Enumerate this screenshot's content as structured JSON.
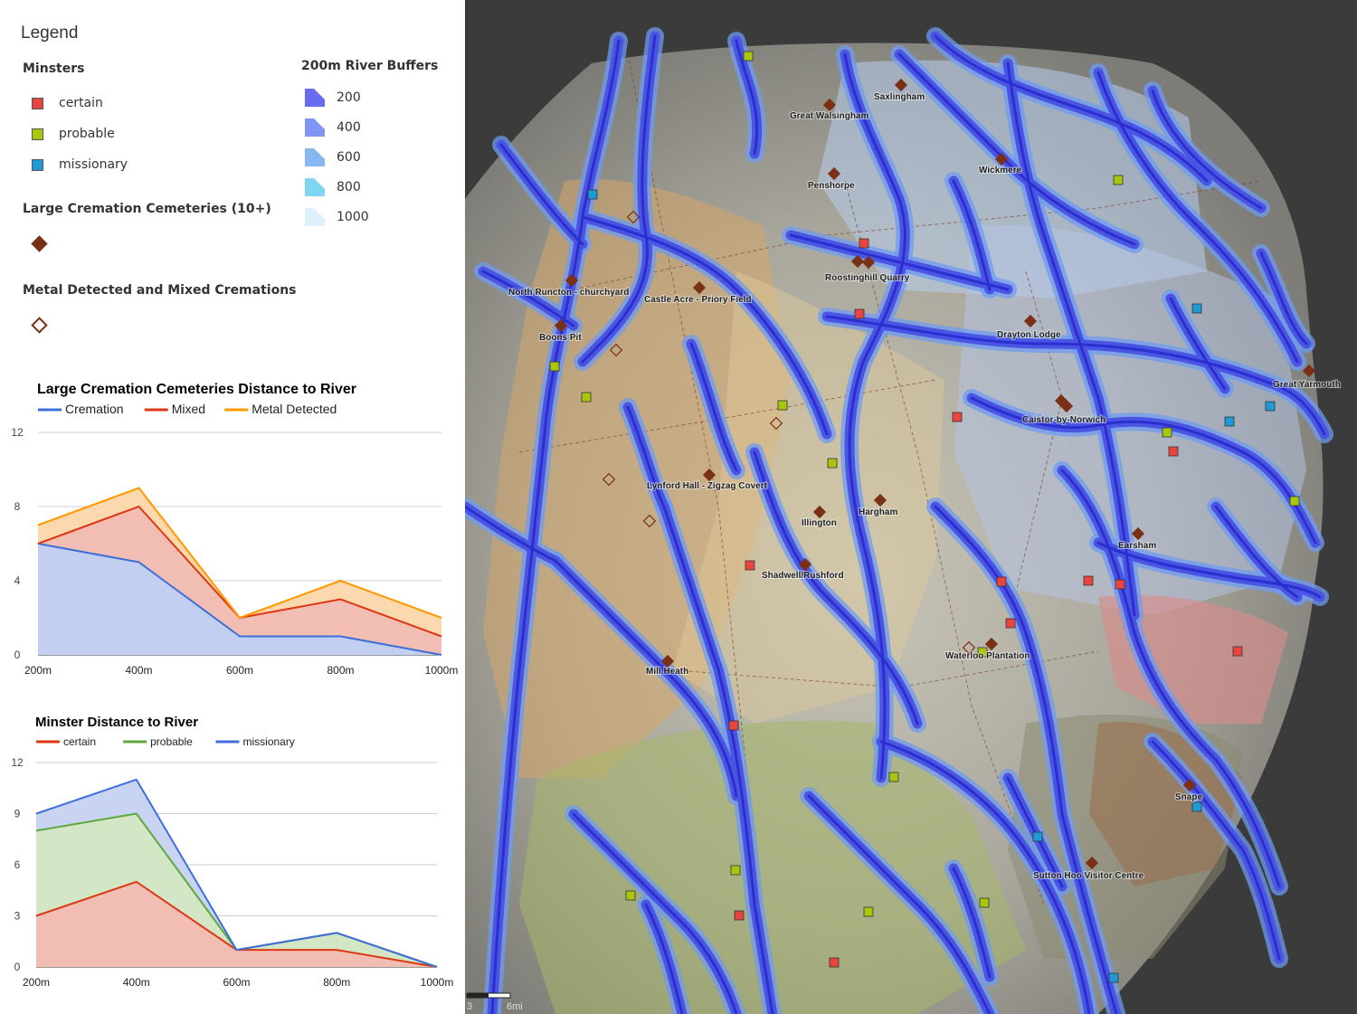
{
  "legend": {
    "title": "Legend",
    "minsters": {
      "heading": "Minsters",
      "items": [
        {
          "label": "certain",
          "color": "#e9453f"
        },
        {
          "label": "probable",
          "color": "#a8c70c"
        },
        {
          "label": "missionary",
          "color": "#1e9ad6"
        }
      ]
    },
    "buffers": {
      "heading": "200m River Buffers",
      "items": [
        {
          "label": "200",
          "color": "#6a6cf0"
        },
        {
          "label": "400",
          "color": "#7f97f2"
        },
        {
          "label": "600",
          "color": "#86b7f2"
        },
        {
          "label": "800",
          "color": "#7ed6f2"
        },
        {
          "label": "1000",
          "color": "#dcf1fa"
        }
      ]
    },
    "large_cremation": {
      "heading": "Large Cremation Cemeteries (10+)",
      "color": "#7a3014"
    },
    "metal_detected": {
      "heading": "Metal Detected and Mixed Cremations",
      "color": "#7a3014"
    }
  },
  "chart_data": [
    {
      "type": "area",
      "stacked": true,
      "title": "Large Cremation Cemeteries Distance to River",
      "categories": [
        "200m",
        "400m",
        "600m",
        "800m",
        "1000m"
      ],
      "ylim": [
        0,
        12
      ],
      "yticks": [
        0,
        4,
        8,
        12
      ],
      "legend": "top",
      "grid": true,
      "series": [
        {
          "name": "Cremation",
          "values": [
            6,
            5,
            1,
            1,
            0
          ],
          "color": "#3f6fd8",
          "fill": "#c3cff0"
        },
        {
          "name": "Mixed",
          "values": [
            0,
            3,
            1,
            2,
            1
          ],
          "color": "#dc3912",
          "fill": "#f2bdb2"
        },
        {
          "name": "Metal Detected",
          "values": [
            1,
            1,
            0,
            1,
            1
          ],
          "color": "#ff9900",
          "fill": "#fbd8ad"
        }
      ]
    },
    {
      "type": "area",
      "stacked": true,
      "title": "Minster Distance to River",
      "categories": [
        "200m",
        "400m",
        "600m",
        "800m",
        "1000m"
      ],
      "ylim": [
        0,
        12
      ],
      "yticks": [
        0,
        3,
        6,
        9,
        12
      ],
      "legend": "top",
      "grid": true,
      "series": [
        {
          "name": "certain",
          "values": [
            3,
            5,
            1,
            1,
            0
          ],
          "color": "#dc3912",
          "fill": "#f2bdb2"
        },
        {
          "name": "probable",
          "values": [
            5,
            4,
            0,
            1,
            0
          ],
          "color": "#5fa840",
          "fill": "#d3e7c6"
        },
        {
          "name": "missionary",
          "values": [
            1,
            2,
            0,
            0,
            0
          ],
          "color": "#3f6fd8",
          "fill": "#c8d4f2"
        }
      ]
    }
  ],
  "map": {
    "scale_label": "6mi",
    "scale_left_label": "3",
    "places": [
      "Saxlingham",
      "Great Walsingham",
      "Wickmere",
      "Penshorpe",
      "North Runcton - churchyard",
      "Castle Acre - Priory Field",
      "Boons Pit",
      "Roostinghill Quarry",
      "Drayton Lodge",
      "Great Yarmouth",
      "Caistor-by-Norwich",
      "Lynford Hall - Zigzag Covert",
      "Illington",
      "Hargham",
      "Earsham",
      "Shadwell/Rushford",
      "Waterloo Plantation",
      "Mill Heath",
      "Snape",
      "Sutton Hoo Visitor Centre"
    ]
  }
}
